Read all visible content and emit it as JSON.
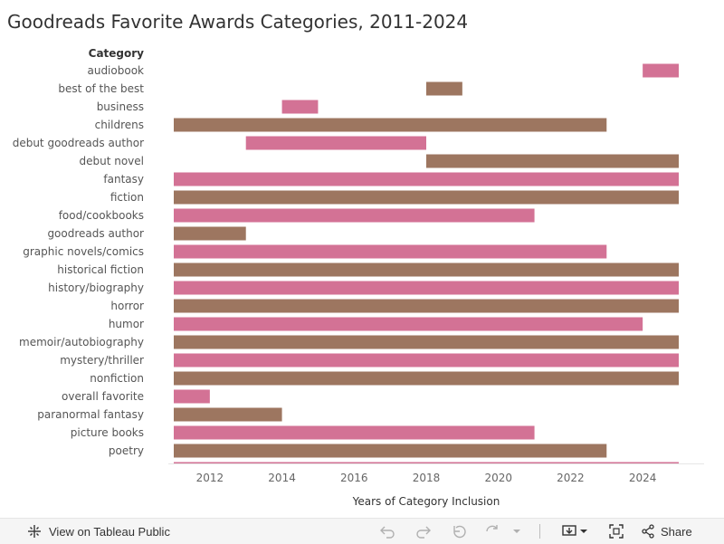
{
  "chart_data": {
    "type": "gantt",
    "title": "Goodreads Favorite Awards Categories, 2011-2024",
    "row_header": "Category",
    "xlabel": "Years of Category Inclusion",
    "xlim": [
      2010.75,
      2025.25
    ],
    "xticks": [
      2012,
      2014,
      2016,
      2018,
      2020,
      2022,
      2024
    ],
    "colors": {
      "pink": "#d37295",
      "brown": "#9d7660"
    },
    "bars": [
      {
        "category": "audiobook",
        "start": 2024,
        "end": 2025,
        "color": "pink"
      },
      {
        "category": "best of the best",
        "start": 2018,
        "end": 2019,
        "color": "brown"
      },
      {
        "category": "business",
        "start": 2014,
        "end": 2015,
        "color": "pink"
      },
      {
        "category": "childrens",
        "start": 2011,
        "end": 2023,
        "color": "brown"
      },
      {
        "category": "debut goodreads author",
        "start": 2013,
        "end": 2018,
        "color": "pink"
      },
      {
        "category": "debut novel",
        "start": 2018,
        "end": 2025,
        "color": "brown"
      },
      {
        "category": "fantasy",
        "start": 2011,
        "end": 2025,
        "color": "pink"
      },
      {
        "category": "fiction",
        "start": 2011,
        "end": 2025,
        "color": "brown"
      },
      {
        "category": "food/cookbooks",
        "start": 2011,
        "end": 2021,
        "color": "pink"
      },
      {
        "category": "goodreads author",
        "start": 2011,
        "end": 2013,
        "color": "brown"
      },
      {
        "category": "graphic novels/comics",
        "start": 2011,
        "end": 2023,
        "color": "pink"
      },
      {
        "category": "historical fiction",
        "start": 2011,
        "end": 2025,
        "color": "brown"
      },
      {
        "category": "history/biography",
        "start": 2011,
        "end": 2025,
        "color": "pink"
      },
      {
        "category": "horror",
        "start": 2011,
        "end": 2025,
        "color": "brown"
      },
      {
        "category": "humor",
        "start": 2011,
        "end": 2024,
        "color": "pink"
      },
      {
        "category": "memoir/autobiography",
        "start": 2011,
        "end": 2025,
        "color": "brown"
      },
      {
        "category": "mystery/thriller",
        "start": 2011,
        "end": 2025,
        "color": "pink"
      },
      {
        "category": "nonfiction",
        "start": 2011,
        "end": 2025,
        "color": "brown"
      },
      {
        "category": "overall favorite",
        "start": 2011,
        "end": 2012,
        "color": "pink"
      },
      {
        "category": "paranormal fantasy",
        "start": 2011,
        "end": 2014,
        "color": "brown"
      },
      {
        "category": "picture books",
        "start": 2011,
        "end": 2021,
        "color": "pink"
      },
      {
        "category": "poetry",
        "start": 2011,
        "end": 2023,
        "color": "brown"
      },
      {
        "category": "",
        "start": 2011,
        "end": 2025,
        "color": "pink",
        "partial": true
      }
    ]
  },
  "toolbar": {
    "view_label": "View on Tableau Public",
    "share_label": "Share"
  }
}
